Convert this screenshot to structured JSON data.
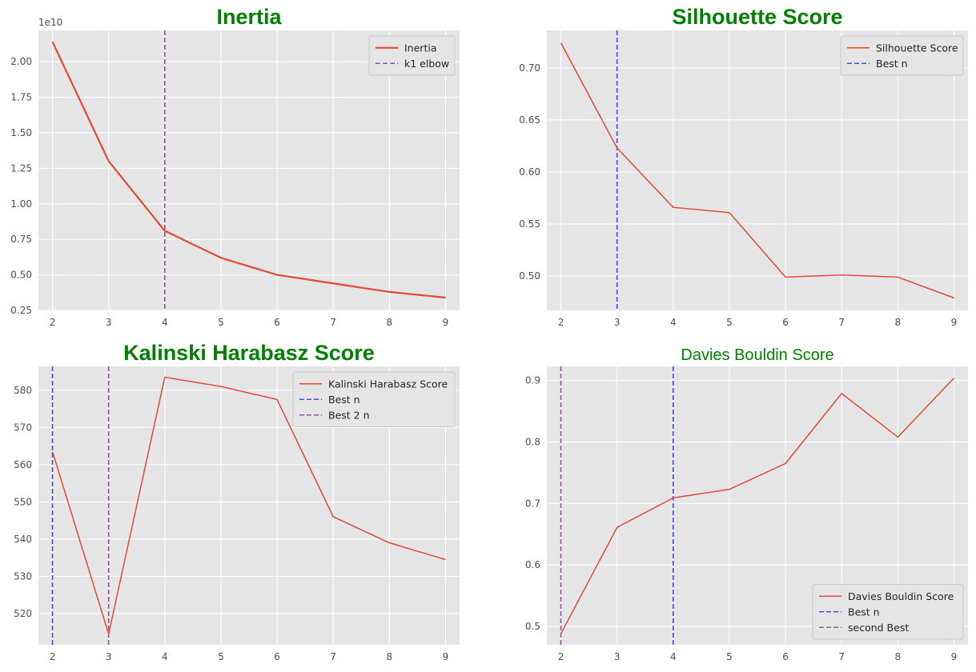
{
  "figure": {
    "background": "#ffffff",
    "axes_facecolor": "#e5e5e5",
    "grid_color": "#ffffff",
    "grid": true
  },
  "chart_data": [
    {
      "type": "line",
      "title": "Inertia",
      "title_bold": true,
      "xlabel": "",
      "ylabel": "",
      "y_offset_label": "1e10",
      "x": [
        2,
        3,
        4,
        5,
        6,
        7,
        8,
        9
      ],
      "xlim": [
        1.75,
        9.25
      ],
      "ylim": [
        0.25,
        2.22
      ],
      "xticks": [
        2,
        3,
        4,
        5,
        6,
        7,
        8,
        9
      ],
      "yticks": [
        0.25,
        0.5,
        0.75,
        1.0,
        1.25,
        1.5,
        1.75,
        2.0
      ],
      "ytick_labels": [
        "0.25",
        "0.50",
        "0.75",
        "1.00",
        "1.25",
        "1.50",
        "1.75",
        "2.00"
      ],
      "series": [
        {
          "name": "Inertia",
          "values": [
            2.14,
            1.3,
            0.81,
            0.62,
            0.5,
            0.44,
            0.38,
            0.34
          ],
          "color": "#E24A33",
          "width": 2.2
        }
      ],
      "vlines": [
        {
          "name": "k1 elbow",
          "x": 4,
          "color": "#984EA3"
        }
      ],
      "legend_loc": "top-right"
    },
    {
      "type": "line",
      "title": "Silhouette Score",
      "title_bold": true,
      "xlabel": "",
      "ylabel": "",
      "x": [
        2,
        3,
        4,
        5,
        6,
        7,
        8,
        9
      ],
      "xlim": [
        1.75,
        9.25
      ],
      "ylim": [
        0.467,
        0.736
      ],
      "xticks": [
        2,
        3,
        4,
        5,
        6,
        7,
        8,
        9
      ],
      "yticks": [
        0.5,
        0.55,
        0.6,
        0.65,
        0.7
      ],
      "ytick_labels": [
        "0.50",
        "0.55",
        "0.60",
        "0.65",
        "0.70"
      ],
      "series": [
        {
          "name": "Silhouette Score",
          "values": [
            0.724,
            0.623,
            0.566,
            0.561,
            0.499,
            0.501,
            0.499,
            0.479
          ],
          "color": "#E24A33",
          "width": 1.5
        }
      ],
      "vlines": [
        {
          "name": "Best n",
          "x": 3,
          "color": "#4A4AE6"
        }
      ],
      "legend_loc": "top-right"
    },
    {
      "type": "line",
      "title": "Kalinski Harabasz Score",
      "title_bold": true,
      "xlabel": "",
      "ylabel": "",
      "x": [
        2,
        3,
        4,
        5,
        6,
        7,
        8,
        9
      ],
      "xlim": [
        1.75,
        9.25
      ],
      "ylim": [
        511.6,
        586.4
      ],
      "xticks": [
        2,
        3,
        4,
        5,
        6,
        7,
        8,
        9
      ],
      "yticks": [
        520,
        530,
        540,
        550,
        560,
        570,
        580
      ],
      "ytick_labels": [
        "520",
        "530",
        "540",
        "550",
        "560",
        "570",
        "580"
      ],
      "series": [
        {
          "name": "Kalinski Harabasz Score",
          "values": [
            563.5,
            514.5,
            583.5,
            581.0,
            577.5,
            546.0,
            539.0,
            534.5
          ],
          "color": "#E24A33",
          "width": 1.5
        }
      ],
      "vlines": [
        {
          "name": "Best n",
          "x": 2,
          "color": "#4A4AE6"
        },
        {
          "name": "Best 2 n",
          "x": 3,
          "color": "#984EA3"
        }
      ],
      "legend_loc": "top-right"
    },
    {
      "type": "line",
      "title": "Davies Bouldin Score",
      "title_bold": false,
      "xlabel": "",
      "ylabel": "",
      "x": [
        2,
        3,
        4,
        5,
        6,
        7,
        8,
        9
      ],
      "xlim": [
        1.75,
        9.25
      ],
      "ylim": [
        0.47,
        0.923
      ],
      "xticks": [
        2,
        3,
        4,
        5,
        6,
        7,
        8,
        9
      ],
      "yticks": [
        0.5,
        0.6,
        0.7,
        0.8,
        0.9
      ],
      "ytick_labels": [
        "0.5",
        "0.6",
        "0.7",
        "0.8",
        "0.9"
      ],
      "series": [
        {
          "name": "Davies Bouldin Score",
          "values": [
            0.488,
            0.661,
            0.709,
            0.723,
            0.765,
            0.879,
            0.808,
            0.904
          ],
          "color": "#E24A33",
          "width": 1.5
        }
      ],
      "vlines": [
        {
          "name": "Best n",
          "x": 4,
          "color": "#4A4AE6"
        },
        {
          "name": "second Best",
          "x": 2,
          "color": "#984EA3"
        }
      ],
      "legend_loc": "bottom-right"
    }
  ]
}
